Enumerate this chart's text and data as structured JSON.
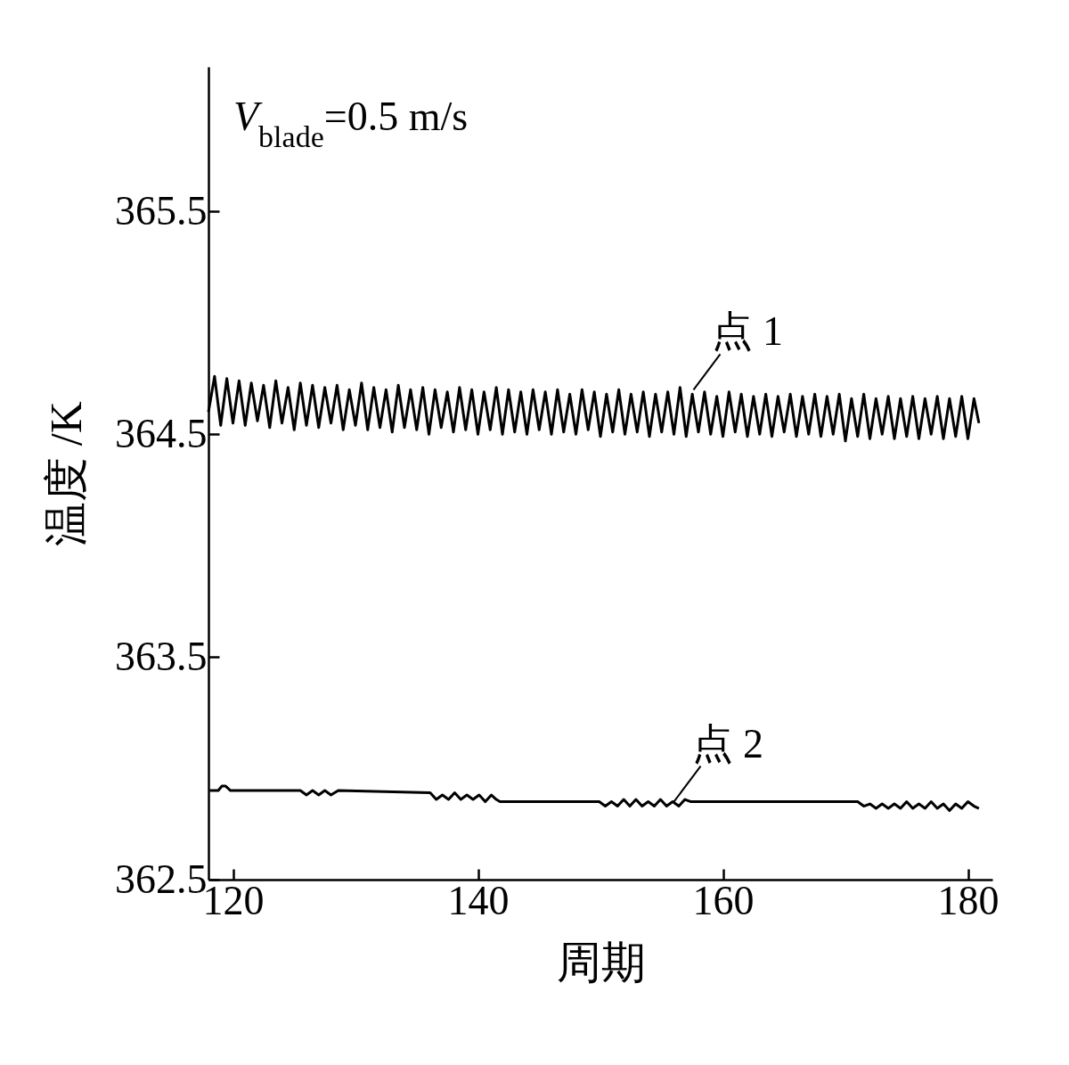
{
  "chart_data": {
    "type": "line",
    "xlabel": "周期",
    "ylabel": "温度 /K",
    "xlim": [
      118,
      182
    ],
    "xticks": [
      120,
      140,
      160,
      180
    ],
    "ylim": [
      362.5,
      366.15
    ],
    "yticks": [
      362.5,
      363.5,
      364.5,
      365.5
    ],
    "grid": false,
    "marker": "none",
    "line_style": "solid",
    "annotations": [
      "V$_{blade}$=0.5 m/s",
      {
        "text": "点 1",
        "x": 157.6,
        "y": 364.7
      },
      {
        "text": "点 2",
        "x": 156,
        "y": 362.85
      }
    ],
    "series": [
      {
        "color": "#000000",
        "x": [
          118,
          118.5,
          119,
          119.5,
          120,
          120.5,
          121,
          121.5,
          122,
          122.5,
          123,
          123.5,
          124,
          124.5,
          125,
          125.5,
          126,
          126.5,
          127,
          127.5,
          128,
          128.5,
          129,
          129.5,
          130,
          130.5,
          131,
          131.5,
          132,
          132.5,
          133,
          133.5,
          134,
          134.5,
          135,
          135.5,
          136,
          136.5,
          137,
          137.5,
          138,
          138.5,
          139,
          139.5,
          140,
          140.5,
          141,
          141.5,
          142,
          142.5,
          143,
          143.5,
          144,
          144.5,
          145,
          145.5,
          146,
          146.5,
          147,
          147.5,
          148,
          148.5,
          149,
          149.5,
          150,
          150.5,
          151,
          151.5,
          152,
          152.5,
          153,
          153.5,
          154,
          154.5,
          155,
          155.5,
          156,
          156.5,
          157,
          157.5,
          158,
          158.5,
          159,
          159.5,
          160,
          160.5,
          161,
          161.5,
          162,
          162.5,
          163,
          163.5,
          164,
          164.5,
          165,
          165.5,
          166,
          166.5,
          167,
          167.5,
          168,
          168.5,
          169,
          169.5,
          170,
          170.5,
          171,
          171.5,
          172,
          172.5,
          173,
          173.5,
          174,
          174.5,
          175,
          175.5,
          176,
          176.5,
          177,
          177.5,
          178,
          178.5,
          179,
          179.5,
          180,
          180.5,
          180.9
        ],
        "values": [
          364.6,
          364.76,
          364.54,
          364.75,
          364.55,
          364.74,
          364.54,
          364.73,
          364.56,
          364.72,
          364.53,
          364.74,
          364.55,
          364.71,
          364.52,
          364.73,
          364.54,
          364.72,
          364.53,
          364.71,
          364.55,
          364.72,
          364.52,
          364.7,
          364.54,
          364.73,
          364.52,
          364.71,
          364.53,
          364.7,
          364.51,
          364.72,
          364.53,
          364.7,
          364.52,
          364.71,
          364.5,
          364.7,
          364.53,
          364.69,
          364.51,
          364.71,
          364.52,
          364.7,
          364.5,
          364.69,
          364.52,
          364.71,
          364.5,
          364.7,
          364.51,
          364.69,
          364.5,
          364.7,
          364.52,
          364.69,
          364.5,
          364.7,
          364.51,
          364.68,
          364.5,
          364.7,
          364.52,
          364.69,
          364.49,
          364.68,
          364.51,
          364.7,
          364.5,
          364.68,
          364.51,
          364.69,
          364.49,
          364.68,
          364.51,
          364.69,
          364.5,
          364.71,
          364.49,
          364.68,
          364.51,
          364.69,
          364.5,
          364.67,
          364.49,
          364.69,
          364.51,
          364.68,
          364.49,
          364.67,
          364.5,
          364.68,
          364.49,
          364.67,
          364.51,
          364.68,
          364.49,
          364.67,
          364.5,
          364.68,
          364.49,
          364.67,
          364.5,
          364.68,
          364.47,
          364.66,
          364.49,
          364.68,
          364.48,
          364.66,
          364.5,
          364.67,
          364.48,
          364.66,
          364.49,
          364.67,
          364.48,
          364.66,
          364.5,
          364.67,
          364.48,
          364.66,
          364.49,
          364.67,
          364.48,
          364.66,
          364.55
        ]
      },
      {
        "color": "#000000",
        "x": [
          118.1,
          118.8,
          119.1,
          119.4,
          119.8,
          125.5,
          126,
          126.5,
          127,
          127.5,
          128,
          128.6,
          136.1,
          136.6,
          137.1,
          137.6,
          138.1,
          138.6,
          139.1,
          139.6,
          140.1,
          140.6,
          141.1,
          141.5,
          141.8,
          149.9,
          150.4,
          150.9,
          151.4,
          151.9,
          152.4,
          152.9,
          153.4,
          153.9,
          154.4,
          154.9,
          155.4,
          155.9,
          156.4,
          156.9,
          157.4,
          171,
          171.5,
          172,
          172.5,
          173,
          173.5,
          174,
          174.5,
          175,
          175.5,
          176,
          176.5,
          177,
          177.5,
          178,
          178.5,
          179,
          179.5,
          180,
          180.5,
          180.9
        ],
        "values": [
          362.9,
          362.9,
          362.92,
          362.92,
          362.9,
          362.9,
          362.88,
          362.9,
          362.88,
          362.9,
          362.88,
          362.9,
          362.89,
          362.86,
          362.88,
          362.86,
          362.89,
          362.86,
          362.88,
          362.86,
          362.88,
          362.85,
          362.88,
          362.86,
          362.85,
          362.85,
          362.83,
          362.85,
          362.83,
          362.86,
          362.83,
          362.86,
          362.83,
          362.85,
          362.83,
          362.86,
          362.83,
          362.85,
          362.83,
          362.86,
          362.85,
          362.85,
          362.83,
          362.84,
          362.82,
          362.84,
          362.82,
          362.84,
          362.82,
          362.85,
          362.82,
          362.84,
          362.82,
          362.85,
          362.82,
          362.84,
          362.81,
          362.84,
          362.82,
          362.85,
          362.83,
          362.82
        ]
      }
    ]
  }
}
